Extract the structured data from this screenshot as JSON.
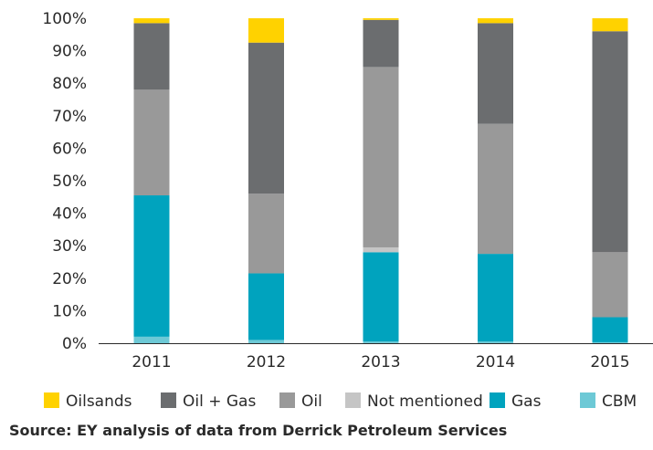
{
  "chart_data": {
    "type": "bar",
    "stacked": true,
    "categories": [
      "2011",
      "2012",
      "2013",
      "2014",
      "2015"
    ],
    "series": [
      {
        "name": "CBM",
        "color": "#6dc9d6",
        "values": [
          2,
          1,
          0.5,
          0.5,
          0.3
        ]
      },
      {
        "name": "Gas",
        "color": "#00a3be",
        "values": [
          43.5,
          20.5,
          27.5,
          27,
          7.7
        ]
      },
      {
        "name": "Not mentioned",
        "color": "#c5c5c5",
        "values": [
          0,
          0,
          1.5,
          0,
          0
        ]
      },
      {
        "name": "Oil",
        "color": "#999999",
        "values": [
          32.5,
          24.5,
          55.5,
          40,
          20
        ]
      },
      {
        "name": "Oil + Gas",
        "color": "#6b6d6f",
        "values": [
          20.5,
          46.5,
          14.5,
          31,
          68
        ]
      },
      {
        "name": "Oilsands",
        "color": "#ffd200",
        "values": [
          1.5,
          7.5,
          0.5,
          1.5,
          4
        ]
      }
    ],
    "legend_order": [
      "Oilsands",
      "Oil + Gas",
      "Oil",
      "Not mentioned",
      "Gas",
      "CBM"
    ],
    "yticks": [
      "0%",
      "10%",
      "20%",
      "30%",
      "40%",
      "50%",
      "60%",
      "70%",
      "80%",
      "90%",
      "100%"
    ],
    "ylim": [
      0,
      100
    ],
    "grid": false,
    "legend_position": "bottom",
    "source": "Source: EY analysis of data from Derrick Petroleum Services"
  }
}
